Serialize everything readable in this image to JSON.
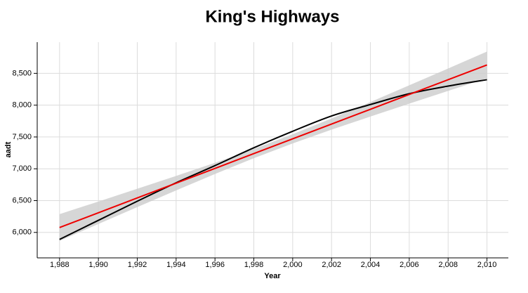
{
  "chart_data": {
    "type": "line",
    "title": "King's Highways",
    "x_label": "Year",
    "y_label": "aadt",
    "x": [
      1988,
      1990,
      1992,
      1994,
      1996,
      1998,
      2000,
      2002,
      2004,
      2006,
      2008,
      2010
    ],
    "series": [
      {
        "color": "#000000",
        "smooth": true,
        "values": [
          5890,
          6190,
          6490,
          6780,
          7050,
          7330,
          7590,
          7830,
          8010,
          8180,
          8300,
          8400
        ]
      },
      {
        "color": "#ee0000",
        "smooth": false,
        "values": [
          6077,
          6309,
          6542,
          6774,
          7006,
          7239,
          7471,
          7703,
          7935,
          8168,
          8400,
          8632
        ]
      }
    ],
    "band": {
      "color": "#cccccc",
      "lower": [
        5867,
        6133,
        6398,
        6660,
        6918,
        7167,
        7399,
        7615,
        7821,
        8024,
        8224,
        8422
      ],
      "upper": [
        6287,
        6485,
        6686,
        6888,
        7094,
        7311,
        7543,
        7791,
        8049,
        8312,
        8576,
        8842
      ]
    },
    "xlim": [
      1986.85,
      2011.1
    ],
    "ylim": [
      5600,
      8990
    ],
    "xticks": [
      {
        "value": 1988,
        "label": "1,988"
      },
      {
        "value": 1990,
        "label": "1,990"
      },
      {
        "value": 1992,
        "label": "1,992"
      },
      {
        "value": 1994,
        "label": "1,994"
      },
      {
        "value": 1996,
        "label": "1,996"
      },
      {
        "value": 1998,
        "label": "1,998"
      },
      {
        "value": 2000,
        "label": "2,000"
      },
      {
        "value": 2002,
        "label": "2,002"
      },
      {
        "value": 2004,
        "label": "2,004"
      },
      {
        "value": 2006,
        "label": "2,006"
      },
      {
        "value": 2008,
        "label": "2,008"
      },
      {
        "value": 2010,
        "label": "2,010"
      }
    ],
    "yticks": [
      {
        "value": 6000,
        "label": "6,000"
      },
      {
        "value": 6500,
        "label": "6,500"
      },
      {
        "value": 7000,
        "label": "7,000"
      },
      {
        "value": 7500,
        "label": "7,500"
      },
      {
        "value": 8000,
        "label": "8,000"
      },
      {
        "value": 8500,
        "label": "8,500"
      }
    ],
    "grid": true
  }
}
